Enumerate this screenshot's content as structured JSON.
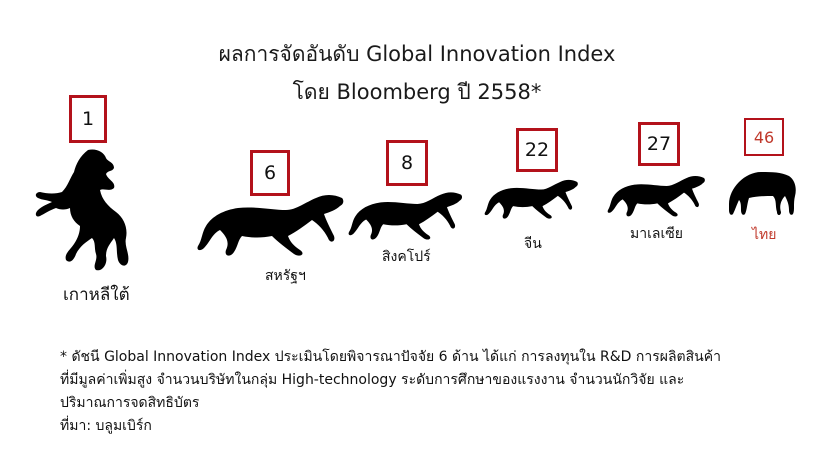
{
  "title": {
    "line1": "ผลการจัดอันดับ Global Innovation Index",
    "line2": "โดย Bloomberg ปี 2558*"
  },
  "rankings": [
    {
      "rank": "1",
      "country": "เกาหลีใต้"
    },
    {
      "rank": "6",
      "country": "สหรัฐฯ"
    },
    {
      "rank": "8",
      "country": "สิงคโปร์"
    },
    {
      "rank": "22",
      "country": "จีน"
    },
    {
      "rank": "27",
      "country": "มาเลเซีย"
    },
    {
      "rank": "46",
      "country": "ไทย"
    }
  ],
  "colors": {
    "box_border": "#b3121b",
    "highlight_text": "#c0392b",
    "horse": "#000000"
  },
  "footnote": {
    "line1": "* ดัชนี Global Innovation Index ประเมินโดยพิจารณาปัจจัย 6 ด้าน ได้แก่ การลงทุนใน R&D การผลิตสินค้า",
    "line2": "ที่มีมูลค่าเพิ่มสูง จำนวนบริษัทในกลุ่ม High-technology   ระดับการศึกษาของแรงงาน จำนวนนักวิจัย และ",
    "line3": "ปริมาณการจดสิทธิบัตร",
    "source": "ที่มา: บลูมเบิร์ก"
  }
}
